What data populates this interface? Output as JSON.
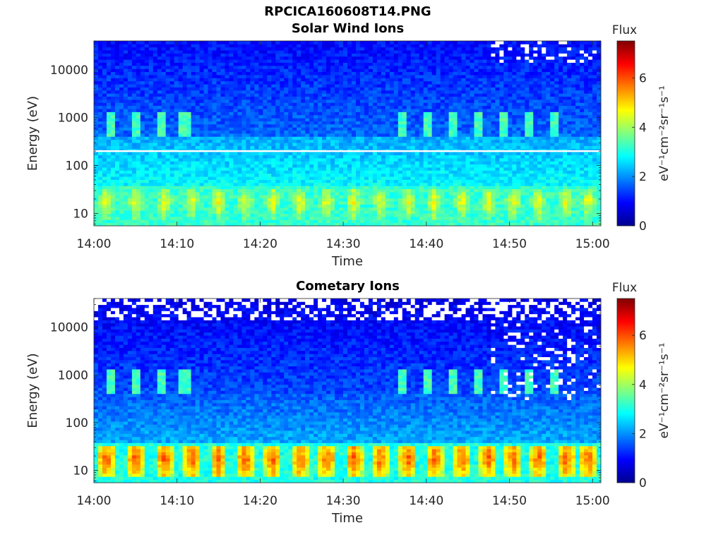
{
  "figure": {
    "title": "RPCICA160608T14.PNG"
  },
  "chart_data": [
    {
      "type": "heatmap",
      "title": "Solar Wind Ions",
      "xlabel": "Time",
      "ylabel": "Energy (eV)",
      "x_range": [
        "14:00",
        "15:01"
      ],
      "xticks": [
        "14:00",
        "14:10",
        "14:20",
        "14:30",
        "14:40",
        "14:50",
        "15:00"
      ],
      "y_scale": "log",
      "ylim": [
        5.5,
        40000
      ],
      "yticks": [
        10,
        100,
        1000,
        10000
      ],
      "ytick_labels": [
        "10",
        "100",
        "1000",
        "10000"
      ],
      "colorbar": {
        "title": "Flux",
        "label": "eV⁻¹cm⁻²sr⁻¹s⁻¹",
        "range": [
          0,
          7.5
        ],
        "ticks": [
          0,
          2,
          4,
          6
        ],
        "tick_labels": [
          "0",
          "2",
          "4",
          "6"
        ],
        "colormap": "jet"
      },
      "features": {
        "white_line_energy_eV": 200,
        "solar_wind_burst_energy_eV": 750,
        "solar_wind_burst_times_min": [
          2,
          5,
          8.2,
          11,
          37,
          40,
          43.2,
          46.2,
          49.2,
          52.3,
          55.5
        ],
        "low_energy_band_eV": [
          7,
          35
        ],
        "low_energy_peak_times_min": [
          1.5,
          5,
          8.5,
          11.8,
          15,
          18.2,
          21.5,
          24.8,
          28,
          31.3,
          34.5,
          37.8,
          41,
          44.3,
          47.5,
          50.5,
          53.5,
          56.8,
          59.5
        ],
        "background_high_energy_level": 1.0,
        "background_mid_energy_level": 2.2,
        "background_low_energy_level": 3.2,
        "peak_level": 4.7
      }
    },
    {
      "type": "heatmap",
      "title": "Cometary Ions",
      "xlabel": "Time",
      "ylabel": "Energy (eV)",
      "x_range": [
        "14:00",
        "15:01"
      ],
      "xticks": [
        "14:00",
        "14:10",
        "14:20",
        "14:30",
        "14:40",
        "14:50",
        "15:00"
      ],
      "y_scale": "log",
      "ylim": [
        5.5,
        40000
      ],
      "yticks": [
        10,
        100,
        1000,
        10000
      ],
      "ytick_labels": [
        "10",
        "100",
        "1000",
        "10000"
      ],
      "colorbar": {
        "title": "Flux",
        "label": "eV⁻¹cm⁻²sr⁻¹s⁻¹",
        "range": [
          0,
          7.5
        ],
        "ticks": [
          0,
          2,
          4,
          6
        ],
        "tick_labels": [
          "0",
          "2",
          "4",
          "6"
        ],
        "colormap": "jet"
      },
      "features": {
        "solar_wind_burst_energy_eV": 750,
        "solar_wind_burst_times_min": [
          2,
          5,
          8.2,
          11,
          37,
          40,
          43.2,
          46.2,
          49.2,
          52.3,
          55.5
        ],
        "low_energy_band_eV": [
          7,
          35
        ],
        "low_energy_peak_times_min": [
          1.5,
          5,
          8.5,
          11.8,
          15,
          18.2,
          21.5,
          24.8,
          28,
          31.3,
          34.5,
          37.8,
          41,
          44.3,
          47.5,
          50.5,
          53.5,
          56.8,
          59.5
        ],
        "background_high_energy_level": 0.8,
        "background_mid_energy_level": 1.6,
        "background_low_energy_level": 3.0,
        "peak_level": 6.0
      }
    }
  ]
}
